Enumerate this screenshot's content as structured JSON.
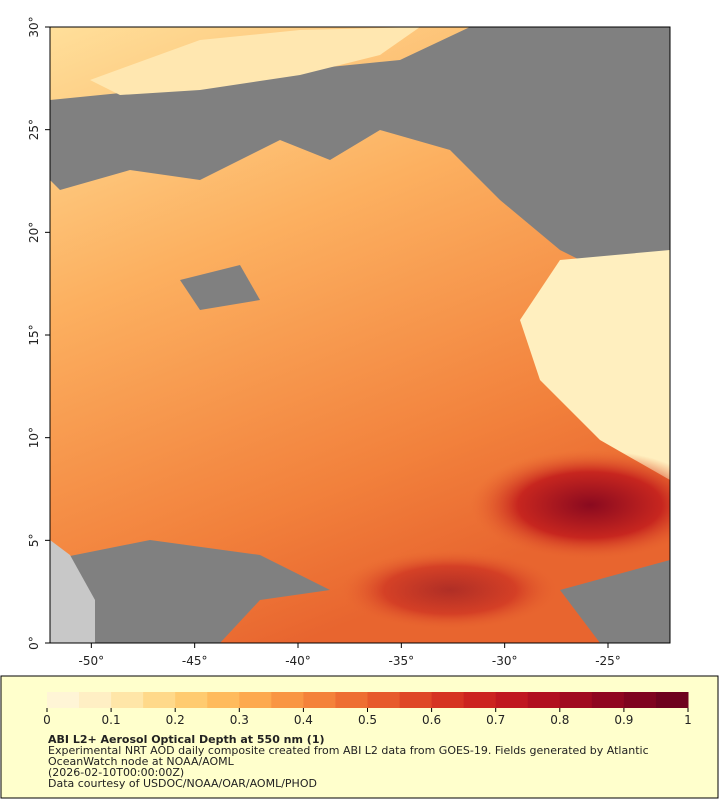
{
  "chart_data": {
    "type": "map",
    "xlim": [
      -52,
      -22
    ],
    "ylim": [
      0,
      30
    ],
    "xticks": [
      {
        "value": -50,
        "label": "-50°"
      },
      {
        "value": -45,
        "label": "-45°"
      },
      {
        "value": -40,
        "label": "-40°"
      },
      {
        "value": -35,
        "label": "-35°"
      },
      {
        "value": -30,
        "label": "-30°"
      },
      {
        "value": -25,
        "label": "-25°"
      }
    ],
    "yticks": [
      {
        "value": 0,
        "label": "0°"
      },
      {
        "value": 5,
        "label": "5°"
      },
      {
        "value": 10,
        "label": "10°"
      },
      {
        "value": 15,
        "label": "15°"
      },
      {
        "value": 20,
        "label": "20°"
      },
      {
        "value": 25,
        "label": "25°"
      },
      {
        "value": 30,
        "label": "30°"
      }
    ],
    "colorbar": {
      "lim": [
        0,
        1
      ],
      "ticks": [
        0,
        0.1,
        0.2,
        0.3,
        0.4,
        0.5,
        0.6,
        0.7,
        0.8,
        0.9,
        1
      ],
      "colors": [
        "#fff5d6",
        "#ffefc4",
        "#ffe6a8",
        "#ffd98a",
        "#ffcb70",
        "#ffbb5c",
        "#fda94e",
        "#f99643",
        "#f4823a",
        "#ee6e32",
        "#e75a2b",
        "#df4726",
        "#d63422",
        "#cc241f",
        "#c0181f",
        "#b1101f",
        "#a10b20",
        "#900720",
        "#7f041f",
        "#6e021e"
      ]
    },
    "title": "ABI L2+ Aerosol Optical Depth at 550 nm (1)",
    "notes": [
      "Experimental NRT AOD daily composite created from ABI L2 data from GOES-19. Fields generated by Atlantic",
      "OceanWatch node at NOAA/AOML",
      "(2026-02-10T00:00:00Z)",
      "Data courtesy of USDOC/NOAA/OAR/AOML/PHOD"
    ]
  }
}
